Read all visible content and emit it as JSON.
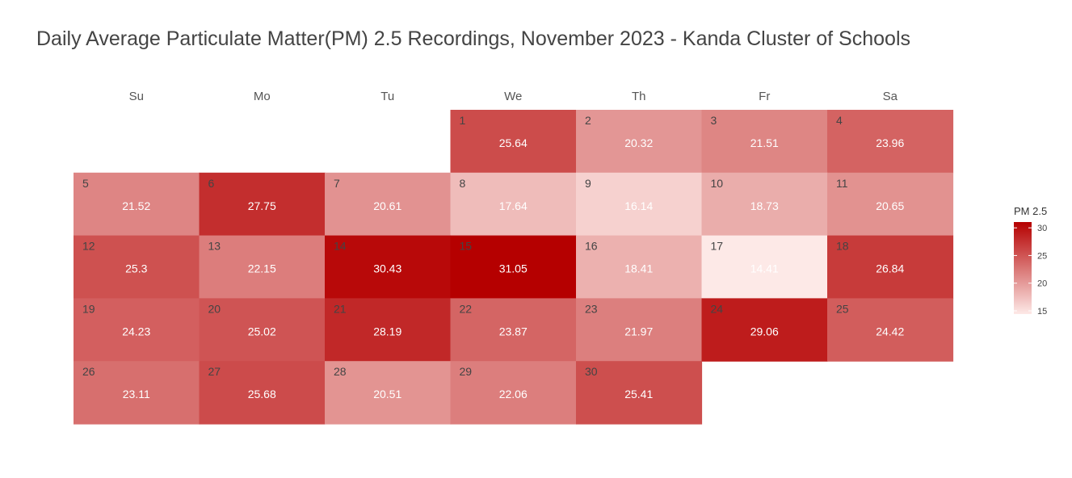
{
  "chart_data": {
    "type": "heatmap",
    "title": "Daily Average Particulate Matter(PM) 2.5 Recordings, November 2023 - Kanda Cluster of Schools",
    "weekdays": [
      "Su",
      "Mo",
      "Tu",
      "We",
      "Th",
      "Fr",
      "Sa"
    ],
    "first_weekday_index": 3,
    "days": [
      1,
      2,
      3,
      4,
      5,
      6,
      7,
      8,
      9,
      10,
      11,
      12,
      13,
      14,
      15,
      16,
      17,
      18,
      19,
      20,
      21,
      22,
      23,
      24,
      25,
      26,
      27,
      28,
      29,
      30
    ],
    "values": [
      25.64,
      20.32,
      21.51,
      23.96,
      21.52,
      27.75,
      20.61,
      17.64,
      16.14,
      18.73,
      20.65,
      25.3,
      22.15,
      30.43,
      31.05,
      18.41,
      14.41,
      26.84,
      24.23,
      25.02,
      28.19,
      23.87,
      21.97,
      29.06,
      24.42,
      23.11,
      25.68,
      20.51,
      22.06,
      25.41
    ],
    "value_labels": [
      "25.64",
      "20.32",
      "21.51",
      "23.96",
      "21.52",
      "27.75",
      "20.61",
      "17.64",
      "16.14",
      "18.73",
      "20.65",
      "25.3",
      "22.15",
      "30.43",
      "31.05",
      "18.41",
      "14.41",
      "26.84",
      "24.23",
      "25.02",
      "28.19",
      "23.87",
      "21.97",
      "29.06",
      "24.42",
      "23.11",
      "25.68",
      "20.51",
      "22.06",
      "25.41"
    ],
    "legend": {
      "title": "PM 2.5",
      "ticks": [
        15,
        20,
        25,
        30
      ],
      "range": [
        14.41,
        31.05
      ],
      "placement": "right"
    },
    "colors": {
      "low": "#fde9e7",
      "high": "#b50000"
    },
    "grid": false
  }
}
